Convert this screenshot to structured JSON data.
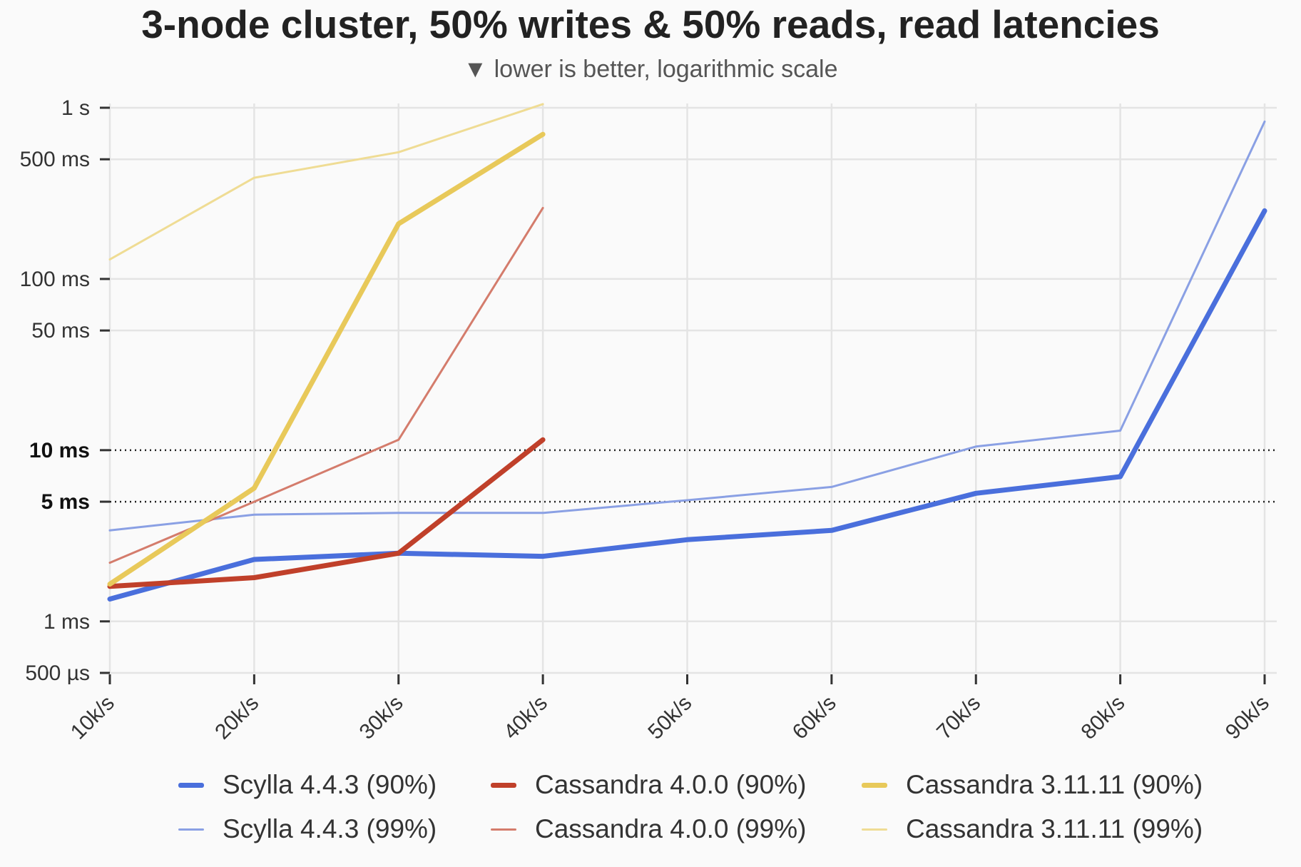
{
  "chart_data": {
    "type": "line",
    "title": "3-node cluster, 50% writes & 50% reads, read latencies",
    "subtitle": "▼ lower is better, logarithmic scale",
    "y_scale": "log",
    "y_unit": "ms",
    "ylim": [
      0.5,
      1000
    ],
    "grid": true,
    "legend_position": "bottom",
    "categories": [
      "10k/s",
      "20k/s",
      "30k/s",
      "40k/s",
      "50k/s",
      "60k/s",
      "70k/s",
      "80k/s",
      "90k/s"
    ],
    "y_ticks": [
      {
        "value": 1000,
        "label": "1 s",
        "bold": false,
        "dotted": false
      },
      {
        "value": 500,
        "label": "500 ms",
        "bold": false,
        "dotted": false
      },
      {
        "value": 100,
        "label": "100 ms",
        "bold": false,
        "dotted": false
      },
      {
        "value": 50,
        "label": "50 ms",
        "bold": false,
        "dotted": false
      },
      {
        "value": 10,
        "label": "10 ms",
        "bold": true,
        "dotted": true
      },
      {
        "value": 5,
        "label": "5 ms",
        "bold": true,
        "dotted": true
      },
      {
        "value": 1,
        "label": "1 ms",
        "bold": false,
        "dotted": false
      },
      {
        "value": 0.5,
        "label": "500 µs",
        "bold": false,
        "dotted": false
      }
    ],
    "series": [
      {
        "name": "Scylla 4.4.3 (90%)",
        "color": "#4a6fdc",
        "width": "thick",
        "values": [
          1.35,
          2.3,
          2.5,
          2.4,
          3.0,
          3.4,
          5.6,
          7.0,
          250
        ]
      },
      {
        "name": "Cassandra 4.0.0 (90%)",
        "color": "#c0402a",
        "width": "thick",
        "values": [
          1.6,
          1.8,
          2.5,
          11.5,
          null,
          null,
          null,
          null,
          null
        ]
      },
      {
        "name": "Cassandra 3.11.11 (90%)",
        "color": "#e8c95a",
        "width": "thick",
        "values": [
          1.65,
          6.0,
          210,
          700,
          null,
          null,
          null,
          null,
          null
        ]
      },
      {
        "name": "Scylla 4.4.3 (99%)",
        "color": "#8aa0e4",
        "width": "thin",
        "values": [
          3.4,
          4.2,
          4.3,
          4.3,
          5.1,
          6.1,
          10.5,
          13.0,
          830
        ]
      },
      {
        "name": "Cassandra 4.0.0 (99%)",
        "color": "#d47c6c",
        "width": "thin",
        "values": [
          2.2,
          5.0,
          11.5,
          260,
          null,
          null,
          null,
          null,
          null
        ]
      },
      {
        "name": "Cassandra 3.11.11 (99%)",
        "color": "#efdc94",
        "width": "thin",
        "values": [
          130,
          390,
          550,
          1050,
          null,
          null,
          null,
          null,
          null
        ]
      }
    ]
  }
}
